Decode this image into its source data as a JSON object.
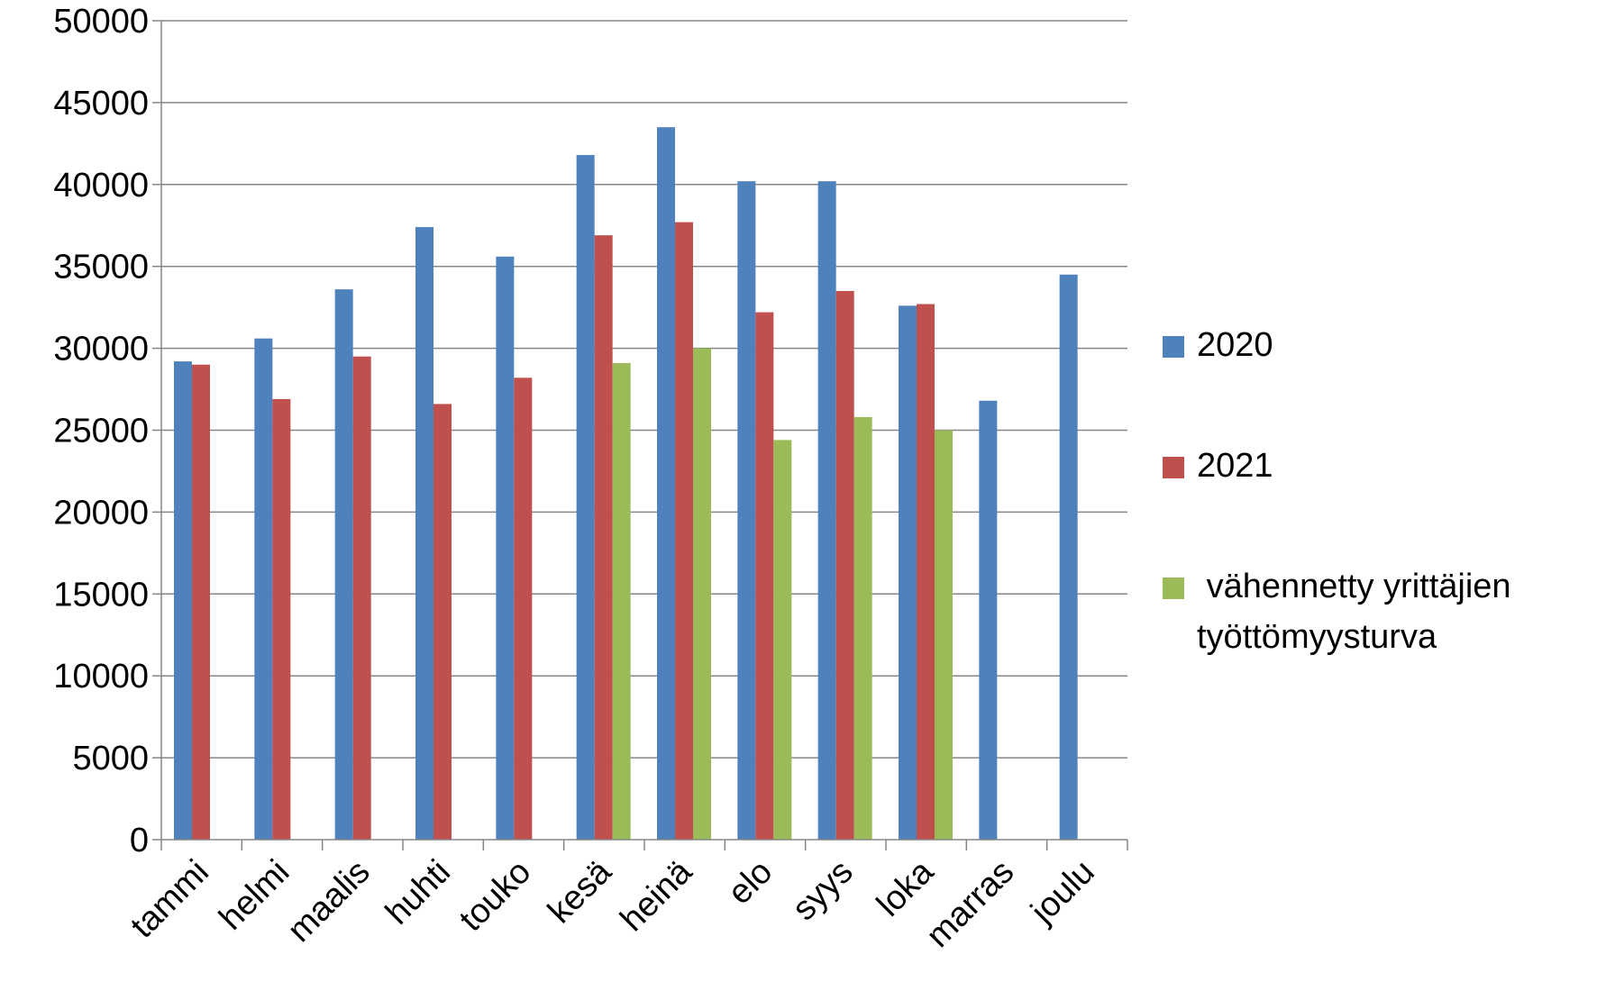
{
  "chart_data": {
    "type": "bar",
    "categories": [
      "tammi",
      "helmi",
      "maalis",
      "huhti",
      "touko",
      "kesä",
      "heinä",
      "elo",
      "syys",
      "loka",
      "marras",
      "joulu"
    ],
    "series": [
      {
        "name": "2020",
        "color": "#4F81BD",
        "values": [
          29200,
          30600,
          33600,
          37400,
          35600,
          41800,
          43500,
          40200,
          40200,
          32600,
          26800,
          34500
        ]
      },
      {
        "name": "2021",
        "color": "#C0504D",
        "values": [
          29000,
          26900,
          29500,
          26600,
          28200,
          36900,
          37700,
          32200,
          33500,
          32700,
          null,
          null
        ]
      },
      {
        "name": " vähennetty yrittäjien työttömyysturva",
        "color": "#9BBB59",
        "values": [
          null,
          null,
          null,
          null,
          null,
          29100,
          30000,
          24400,
          25800,
          25000,
          null,
          null
        ]
      }
    ],
    "ylim": [
      0,
      50000
    ],
    "yticks": [
      "0",
      "5000",
      "10000",
      "15000",
      "20000",
      "25000",
      "30000",
      "35000",
      "40000",
      "45000",
      "50000"
    ],
    "xlabel": "",
    "ylabel": "",
    "grid": true,
    "legend_position": "right"
  }
}
